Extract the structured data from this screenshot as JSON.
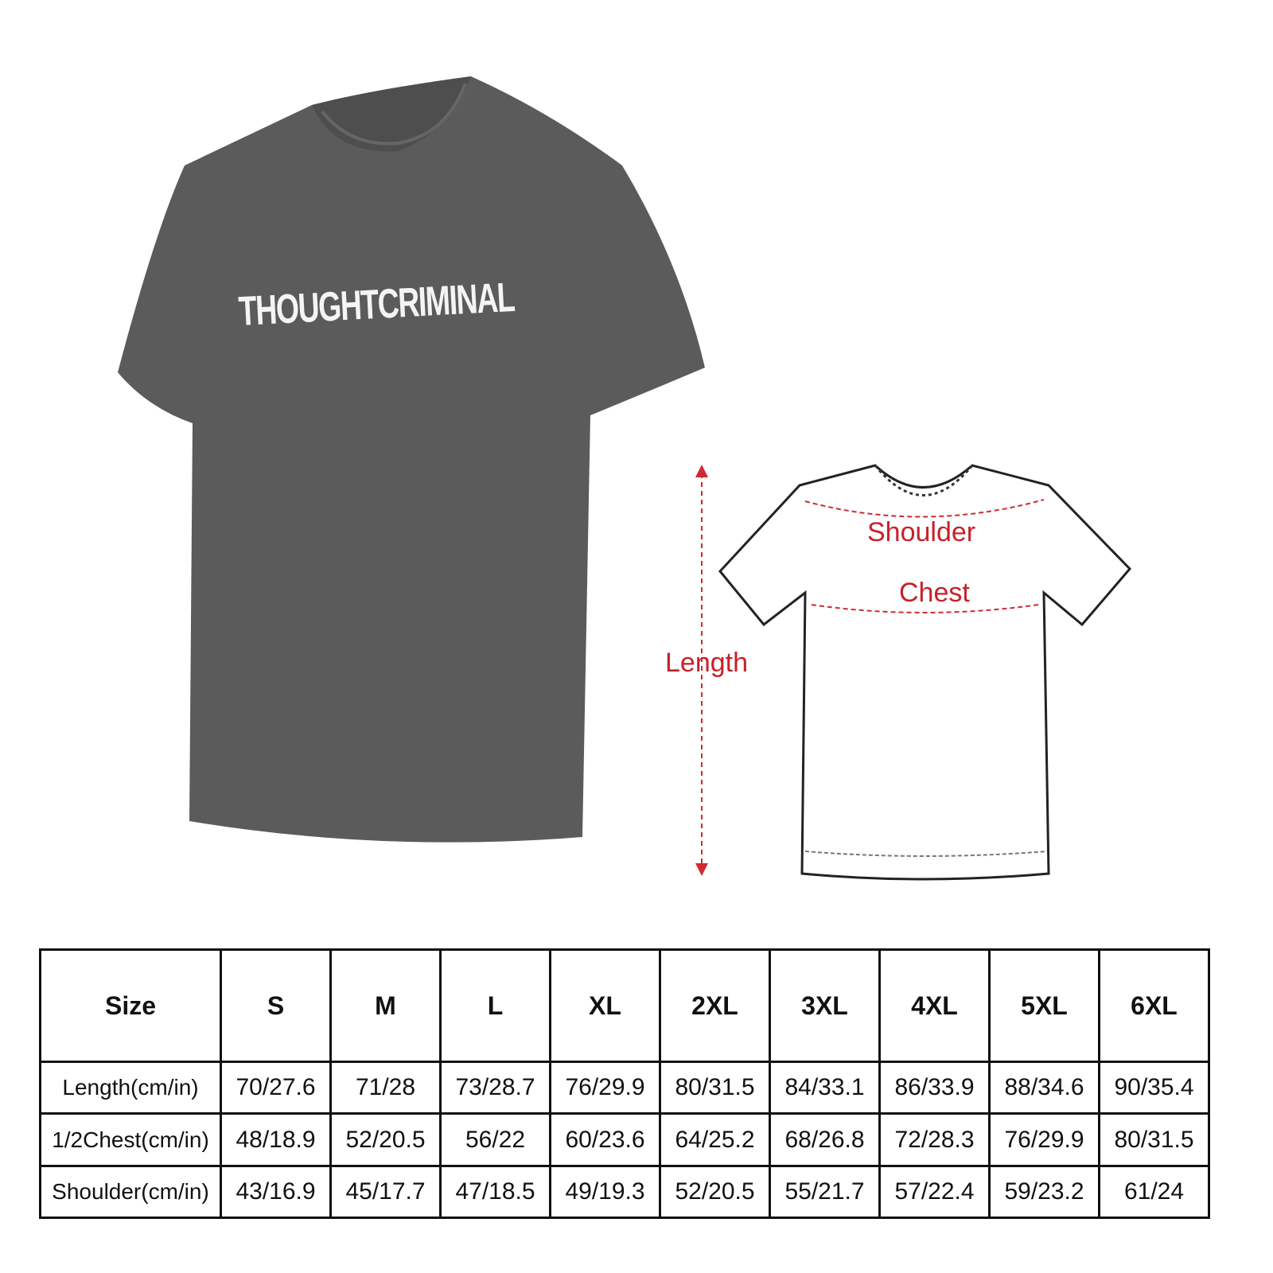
{
  "product": {
    "print_text": "THOUGHTCRIMINAL",
    "shirt_color": "#5b5b5b",
    "print_color": "#f4f4f4"
  },
  "diagram": {
    "labels": {
      "shoulder": "Shoulder",
      "chest": "Chest",
      "length": "Length"
    },
    "label_color": "#c8202a"
  },
  "size_table": {
    "header": [
      "Size",
      "S",
      "M",
      "L",
      "XL",
      "2XL",
      "3XL",
      "4XL",
      "5XL",
      "6XL"
    ],
    "rows": [
      {
        "label": "Length(cm/in)",
        "values": [
          "70/27.6",
          "71/28",
          "73/28.7",
          "76/29.9",
          "80/31.5",
          "84/33.1",
          "86/33.9",
          "88/34.6",
          "90/35.4"
        ]
      },
      {
        "label": "1/2Chest(cm/in)",
        "values": [
          "48/18.9",
          "52/20.5",
          "56/22",
          "60/23.6",
          "64/25.2",
          "68/26.8",
          "72/28.3",
          "76/29.9",
          "80/31.5"
        ]
      },
      {
        "label": "Shoulder(cm/in)",
        "values": [
          "43/16.9",
          "45/17.7",
          "47/18.5",
          "49/19.3",
          "52/20.5",
          "55/21.7",
          "57/22.4",
          "59/23.2",
          "61/24"
        ]
      }
    ]
  }
}
